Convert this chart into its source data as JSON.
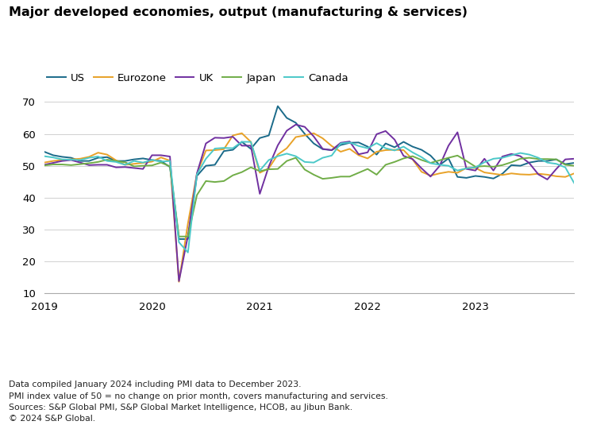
{
  "title": "Major developed economies, output (manufacturing & services)",
  "footnotes": [
    "Data compiled January 2024 including PMI data to December 2023.",
    "PMI index value of 50 = no change on prior month, covers manufacturing and services.",
    "Sources: S&P Global PMI, S&P Global Market Intelligence, HCOB, au Jibun Bank.",
    "© 2024 S&P Global."
  ],
  "ylim": [
    10,
    70
  ],
  "yticks": [
    10,
    20,
    30,
    40,
    50,
    60,
    70
  ],
  "xtick_labels": [
    "2019",
    "2020",
    "2021",
    "2022",
    "2023"
  ],
  "year_tick_positions": [
    0,
    12,
    24,
    36,
    48
  ],
  "series_order": [
    "US",
    "Eurozone",
    "UK",
    "Japan",
    "Canada"
  ],
  "series": {
    "US": {
      "color": "#1b6b8a",
      "linewidth": 1.4,
      "values": [
        54.4,
        53.3,
        52.8,
        52.5,
        51.5,
        51.5,
        52.5,
        52.7,
        51.5,
        51.5,
        52.0,
        52.3,
        51.8,
        51.5,
        49.6,
        27.0,
        27.0,
        46.8,
        50.0,
        50.3,
        54.6,
        55.0,
        57.5,
        55.3,
        58.7,
        59.5,
        68.7,
        65.0,
        63.5,
        60.0,
        57.0,
        55.2,
        54.9,
        56.5,
        57.2,
        57.3,
        56.0,
        53.5,
        57.0,
        55.8,
        57.5,
        56.0,
        55.0,
        53.2,
        50.2,
        52.3,
        46.5,
        46.2,
        46.8,
        46.5,
        46.0,
        47.5,
        50.2,
        50.0,
        51.0,
        51.5,
        51.5,
        52.0,
        50.5,
        50.9
      ]
    },
    "Eurozone": {
      "color": "#e8a228",
      "linewidth": 1.4,
      "values": [
        51.0,
        51.5,
        51.8,
        52.0,
        52.2,
        52.8,
        54.1,
        53.5,
        51.7,
        50.3,
        50.6,
        50.9,
        51.3,
        52.6,
        51.6,
        13.6,
        31.9,
        47.5,
        54.8,
        54.9,
        55.2,
        59.5,
        60.2,
        57.5,
        47.8,
        49.2,
        53.5,
        55.5,
        59.0,
        59.5,
        60.2,
        58.6,
        56.2,
        54.4,
        55.3,
        53.3,
        52.3,
        54.4,
        54.9,
        55.0,
        54.9,
        52.0,
        48.1,
        46.9,
        47.6,
        48.1,
        47.8,
        49.3,
        49.3,
        47.9,
        47.5,
        47.1,
        47.6,
        47.3,
        47.2,
        47.5,
        47.2,
        46.7,
        46.5,
        47.6
      ]
    },
    "UK": {
      "color": "#7030a0",
      "linewidth": 1.4,
      "values": [
        50.3,
        50.9,
        51.5,
        51.8,
        51.0,
        50.2,
        50.3,
        50.3,
        49.5,
        49.6,
        49.3,
        49.0,
        53.3,
        53.3,
        52.9,
        13.8,
        28.0,
        47.6,
        57.0,
        58.8,
        58.7,
        59.1,
        56.3,
        56.3,
        41.2,
        49.8,
        56.4,
        61.0,
        62.9,
        62.2,
        59.2,
        55.3,
        54.9,
        57.2,
        57.6,
        53.6,
        54.2,
        59.9,
        60.9,
        58.2,
        53.1,
        52.1,
        49.2,
        46.6,
        49.9,
        56.3,
        60.5,
        49.0,
        48.5,
        52.2,
        48.5,
        52.9,
        53.7,
        53.0,
        50.8,
        47.3,
        45.7,
        49.0,
        52.0,
        52.2
      ]
    },
    "Japan": {
      "color": "#70ad47",
      "linewidth": 1.4,
      "values": [
        50.1,
        50.4,
        50.4,
        50.2,
        50.5,
        50.8,
        51.2,
        51.9,
        51.5,
        51.1,
        49.8,
        50.0,
        50.1,
        51.0,
        49.8,
        27.8,
        27.8,
        40.8,
        45.2,
        44.9,
        45.2,
        47.0,
        48.0,
        49.5,
        48.3,
        48.9,
        49.0,
        51.5,
        52.5,
        48.8,
        47.2,
        45.9,
        46.2,
        46.6,
        46.6,
        47.8,
        49.0,
        47.2,
        50.3,
        51.2,
        52.3,
        53.0,
        51.8,
        50.9,
        51.7,
        52.5,
        53.2,
        51.5,
        49.7,
        49.9,
        49.7,
        50.2,
        51.1,
        52.2,
        52.5,
        52.1,
        52.1,
        52.0,
        50.3,
        50.0
      ]
    },
    "Canada": {
      "color": "#4bc8c8",
      "linewidth": 1.4,
      "values": [
        53.0,
        52.6,
        52.0,
        51.9,
        51.8,
        52.5,
        52.9,
        51.5,
        51.2,
        50.3,
        51.5,
        51.0,
        51.8,
        51.3,
        51.5,
        26.0,
        22.8,
        47.3,
        52.2,
        55.4,
        55.6,
        55.5,
        57.5,
        57.5,
        48.5,
        51.8,
        53.0,
        53.8,
        53.0,
        51.2,
        51.0,
        52.5,
        53.2,
        57.0,
        57.3,
        56.2,
        55.5,
        57.1,
        55.5,
        54.8,
        56.0,
        54.2,
        52.7,
        50.8,
        50.3,
        50.0,
        48.5,
        49.2,
        49.5,
        51.1,
        52.2,
        52.5,
        53.3,
        54.0,
        53.5,
        52.5,
        51.0,
        50.6,
        49.5,
        44.5
      ]
    }
  }
}
